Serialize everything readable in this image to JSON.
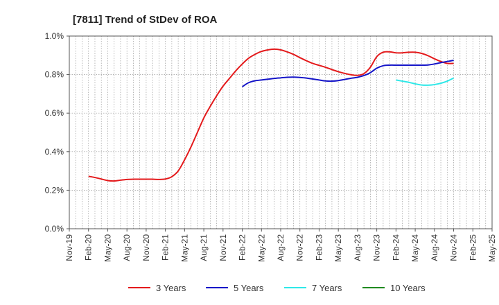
{
  "chart_data": {
    "type": "line",
    "title": "[7811]  Trend of StDev of ROA",
    "xlabel": "",
    "ylabel": "",
    "x_tick_labels": [
      "Nov-19",
      "Feb-20",
      "May-20",
      "Aug-20",
      "Nov-20",
      "Feb-21",
      "May-21",
      "Aug-21",
      "Nov-21",
      "Feb-22",
      "May-22",
      "Aug-22",
      "Nov-22",
      "Feb-23",
      "May-23",
      "Aug-23",
      "Nov-23",
      "Feb-24",
      "May-24",
      "Aug-24",
      "Nov-24",
      "Feb-25",
      "May-25"
    ],
    "x_unit": "months since Nov-19",
    "y_tick_labels": [
      "0.0%",
      "0.2%",
      "0.4%",
      "0.6%",
      "0.8%",
      "1.0%"
    ],
    "ylim": [
      0.0,
      1.0
    ],
    "grid": true,
    "legend_position": "bottom",
    "series": [
      {
        "name": "3 Years",
        "color": "#e41a1c",
        "points": [
          [
            3,
            0.272
          ],
          [
            4,
            0.266
          ],
          [
            5,
            0.258
          ],
          [
            6,
            0.25
          ],
          [
            7,
            0.248
          ],
          [
            8,
            0.252
          ],
          [
            9,
            0.256
          ],
          [
            10,
            0.257
          ],
          [
            11,
            0.257
          ],
          [
            12,
            0.257
          ],
          [
            13,
            0.257
          ],
          [
            14,
            0.256
          ],
          [
            15,
            0.258
          ],
          [
            16,
            0.27
          ],
          [
            17,
            0.3
          ],
          [
            18,
            0.358
          ],
          [
            19,
            0.425
          ],
          [
            20,
            0.5
          ],
          [
            21,
            0.575
          ],
          [
            22,
            0.635
          ],
          [
            23,
            0.69
          ],
          [
            24,
            0.74
          ],
          [
            25,
            0.78
          ],
          [
            26,
            0.82
          ],
          [
            27,
            0.855
          ],
          [
            28,
            0.885
          ],
          [
            29,
            0.905
          ],
          [
            30,
            0.92
          ],
          [
            31,
            0.928
          ],
          [
            32,
            0.932
          ],
          [
            33,
            0.928
          ],
          [
            34,
            0.918
          ],
          [
            35,
            0.905
          ],
          [
            36,
            0.888
          ],
          [
            37,
            0.872
          ],
          [
            38,
            0.858
          ],
          [
            39,
            0.848
          ],
          [
            40,
            0.838
          ],
          [
            41,
            0.826
          ],
          [
            42,
            0.815
          ],
          [
            43,
            0.806
          ],
          [
            44,
            0.799
          ],
          [
            45,
            0.796
          ],
          [
            46,
            0.805
          ],
          [
            47,
            0.838
          ],
          [
            48,
            0.893
          ],
          [
            49,
            0.916
          ],
          [
            50,
            0.918
          ],
          [
            51,
            0.913
          ],
          [
            52,
            0.913
          ],
          [
            53,
            0.916
          ],
          [
            54,
            0.916
          ],
          [
            55,
            0.91
          ],
          [
            56,
            0.898
          ],
          [
            57,
            0.882
          ],
          [
            58,
            0.868
          ],
          [
            59,
            0.858
          ],
          [
            60,
            0.858
          ]
        ]
      },
      {
        "name": "5 Years",
        "color": "#1515c8",
        "points": [
          [
            27,
            0.737
          ],
          [
            28,
            0.758
          ],
          [
            29,
            0.768
          ],
          [
            30,
            0.772
          ],
          [
            31,
            0.776
          ],
          [
            32,
            0.78
          ],
          [
            33,
            0.783
          ],
          [
            34,
            0.786
          ],
          [
            35,
            0.787
          ],
          [
            36,
            0.785
          ],
          [
            37,
            0.782
          ],
          [
            38,
            0.777
          ],
          [
            39,
            0.772
          ],
          [
            40,
            0.767
          ],
          [
            41,
            0.766
          ],
          [
            42,
            0.769
          ],
          [
            43,
            0.775
          ],
          [
            44,
            0.781
          ],
          [
            45,
            0.786
          ],
          [
            46,
            0.795
          ],
          [
            47,
            0.81
          ],
          [
            48,
            0.833
          ],
          [
            49,
            0.846
          ],
          [
            50,
            0.849
          ],
          [
            51,
            0.849
          ],
          [
            52,
            0.849
          ],
          [
            53,
            0.849
          ],
          [
            54,
            0.849
          ],
          [
            55,
            0.849
          ],
          [
            56,
            0.85
          ],
          [
            57,
            0.855
          ],
          [
            58,
            0.862
          ],
          [
            59,
            0.868
          ],
          [
            60,
            0.874
          ]
        ]
      },
      {
        "name": "7 Years",
        "color": "#2ee8e8",
        "points": [
          [
            51,
            0.772
          ],
          [
            52,
            0.766
          ],
          [
            53,
            0.76
          ],
          [
            54,
            0.752
          ],
          [
            55,
            0.746
          ],
          [
            56,
            0.745
          ],
          [
            57,
            0.748
          ],
          [
            58,
            0.755
          ],
          [
            59,
            0.766
          ],
          [
            60,
            0.782
          ]
        ]
      },
      {
        "name": "10 Years",
        "color": "#1f8a1f",
        "points": []
      }
    ]
  }
}
